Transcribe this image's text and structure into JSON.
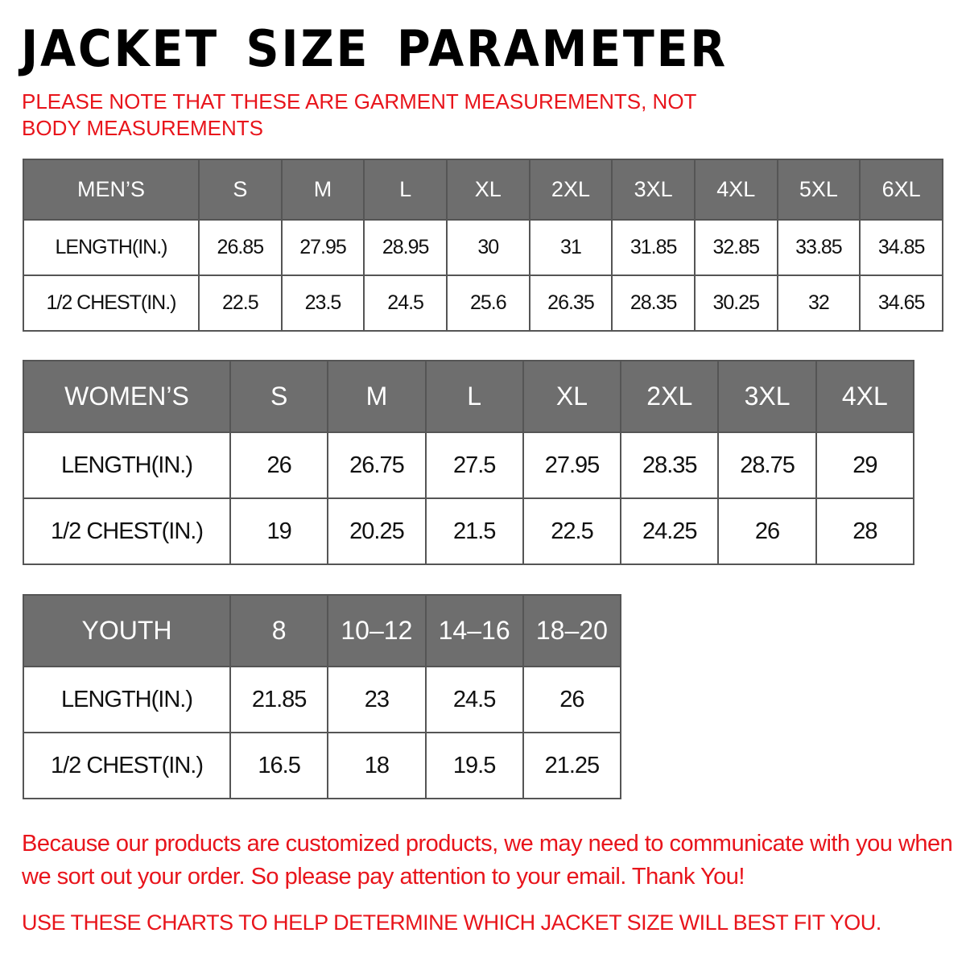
{
  "title": "JACKET SIZE PARAMETER",
  "note": "PLEASE NOTE THAT THESE ARE GARMENT MEASUREMENTS, NOT BODY MEASUREMENTS",
  "tables": [
    {
      "id": "men",
      "header": [
        "MEN’S",
        "S",
        "M",
        "L",
        "XL",
        "2XL",
        "3XL",
        "4XL",
        "5XL",
        "6XL"
      ],
      "rows": [
        [
          "LENGTH(IN.)",
          "26.85",
          "27.95",
          "28.95",
          "30",
          "31",
          "31.85",
          "32.85",
          "33.85",
          "34.85"
        ],
        [
          "1/2 CHEST(IN.)",
          "22.5",
          "23.5",
          "24.5",
          "25.6",
          "26.35",
          "28.35",
          "30.25",
          "32",
          "34.65"
        ]
      ]
    },
    {
      "id": "women",
      "header": [
        "WOMEN’S",
        "S",
        "M",
        "L",
        "XL",
        "2XL",
        "3XL",
        "4XL"
      ],
      "rows": [
        [
          "LENGTH(IN.)",
          "26",
          "26.75",
          "27.5",
          "27.95",
          "28.35",
          "28.75",
          "29"
        ],
        [
          "1/2 CHEST(IN.)",
          "19",
          "20.25",
          "21.5",
          "22.5",
          "24.25",
          "26",
          "28"
        ]
      ]
    },
    {
      "id": "youth",
      "header": [
        "YOUTH",
        "8",
        "10–12",
        "14–16",
        "18–20"
      ],
      "rows": [
        [
          "LENGTH(IN.)",
          "21.85",
          "23",
          "24.5",
          "26"
        ],
        [
          "1/2 CHEST(IN.)",
          "16.5",
          "18",
          "19.5",
          "21.25"
        ]
      ]
    }
  ],
  "footer": "Because our products are customized products, we may need to communicate with you when we sort out your order. So please pay attention to your email. Thank You!",
  "footer2": "USE THESE CHARTS TO HELP DETERMINE WHICH JACKET SIZE WILL BEST FIT YOU.",
  "colors": {
    "accent_red": "#e8141b",
    "header_gray": "#6e6e6e",
    "grid": "#555555"
  }
}
